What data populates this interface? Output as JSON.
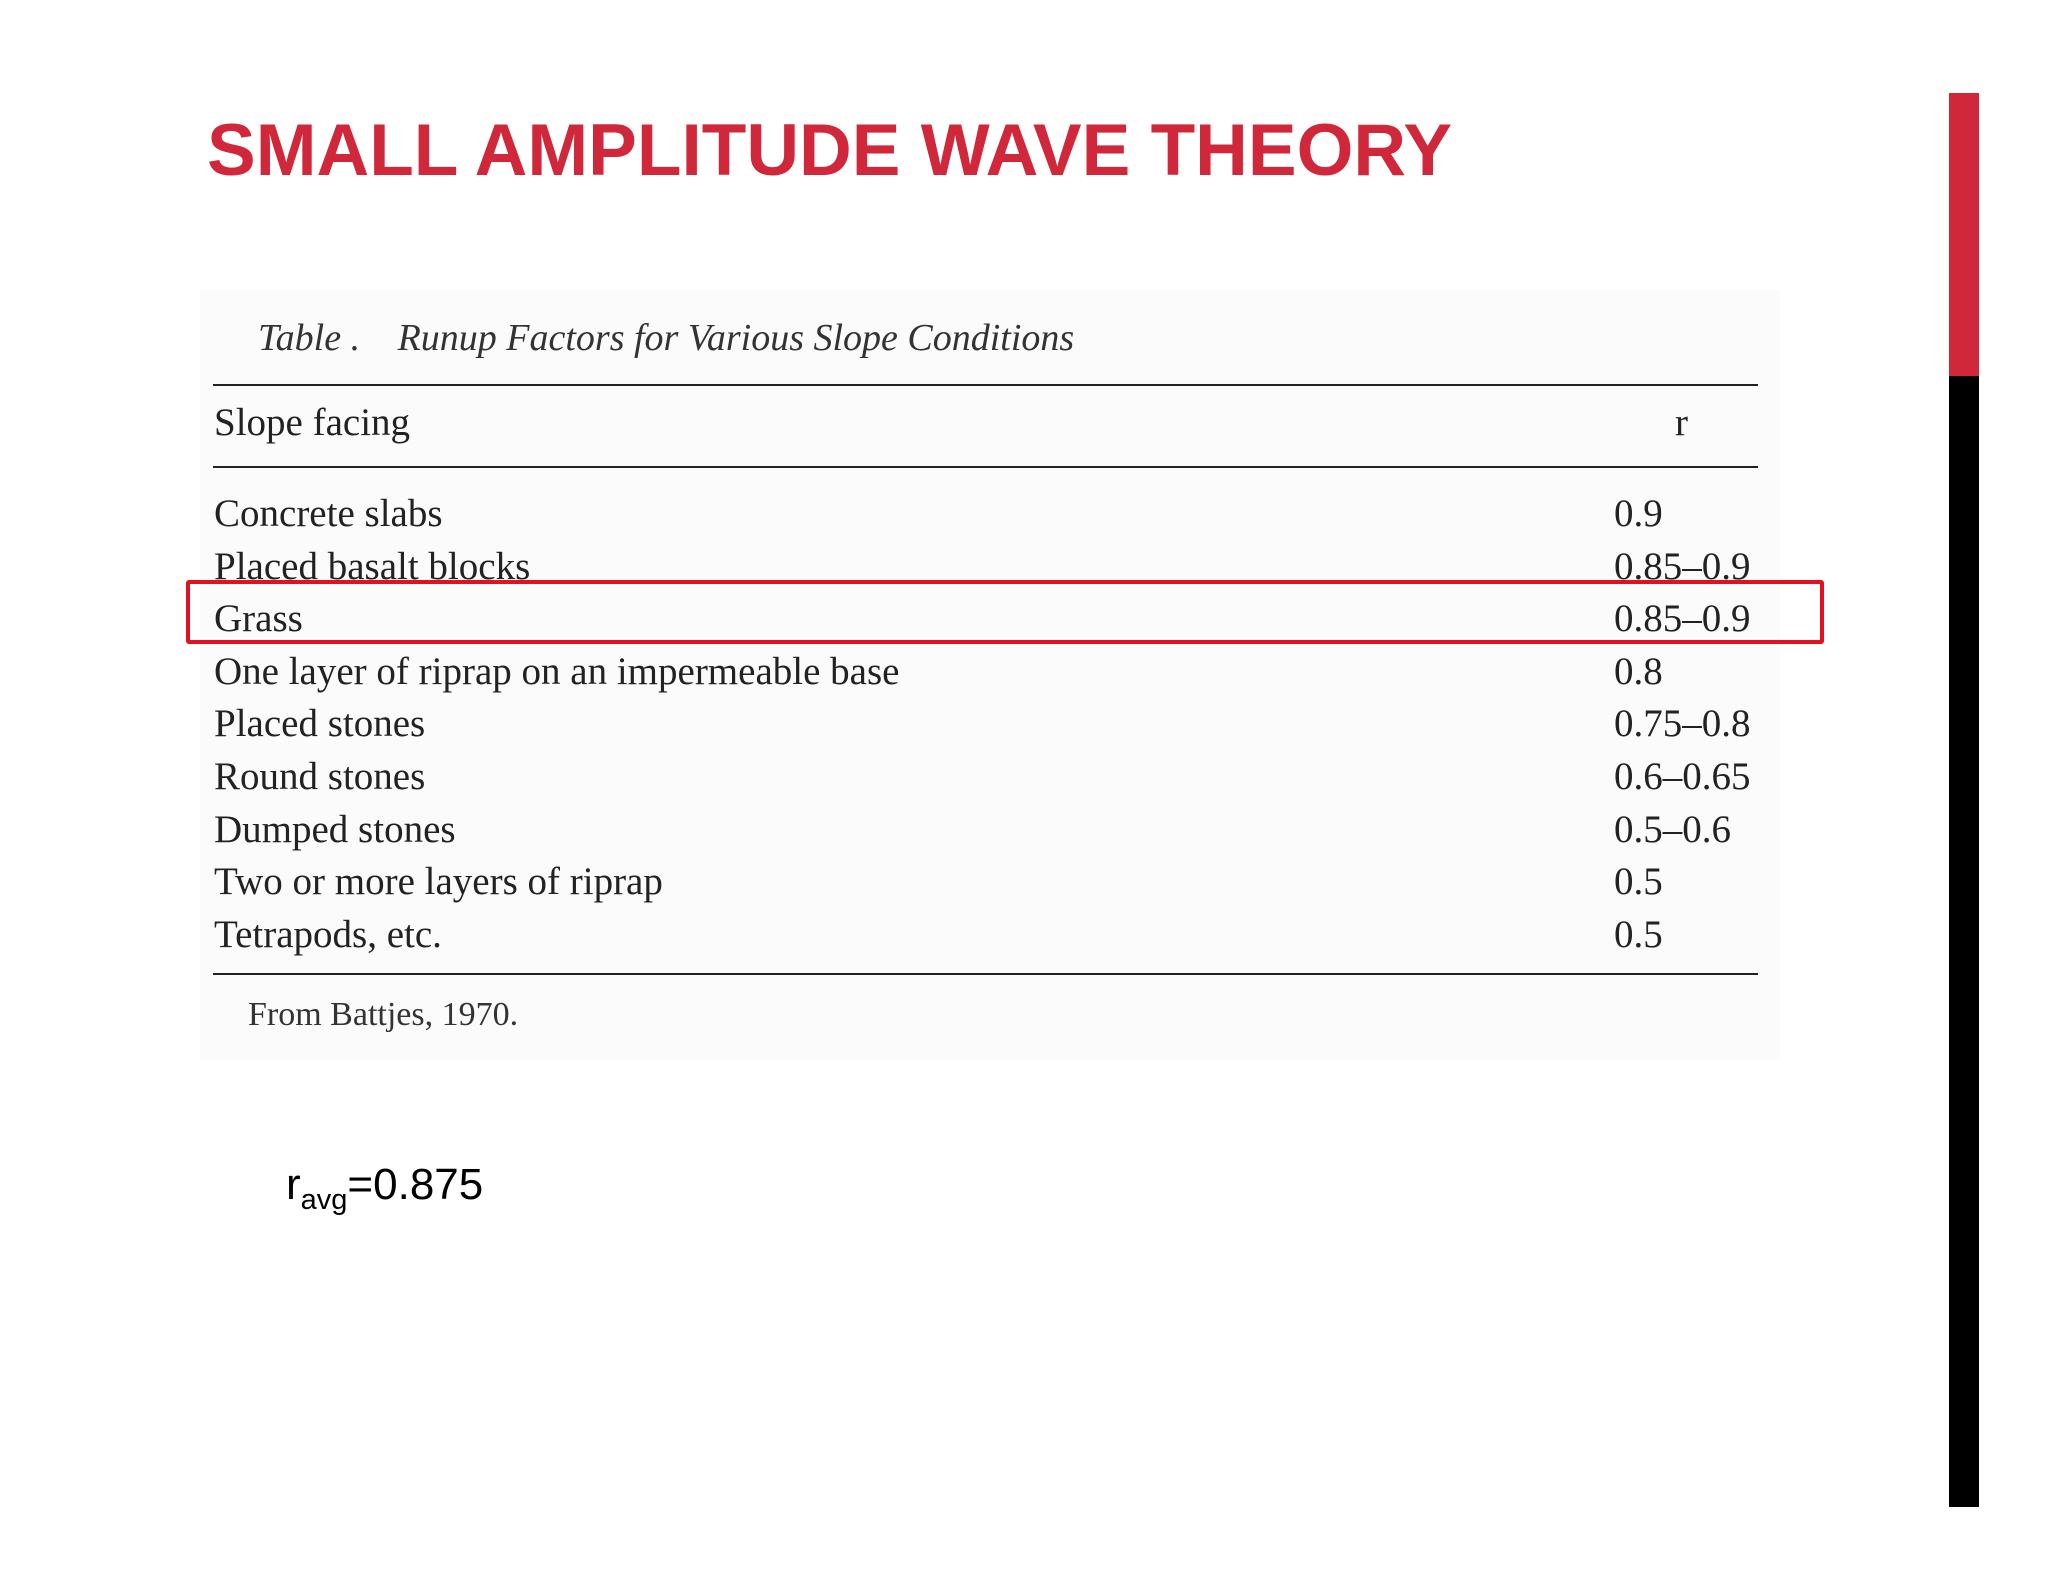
{
  "slide": {
    "title": "SMALL AMPLITUDE WAVE THEORY"
  },
  "table": {
    "caption_label": "Table .",
    "caption_title": "Runup Factors for Various Slope Conditions",
    "headers": {
      "slope": "Slope facing",
      "r": "r"
    },
    "rows": [
      {
        "label": "Concrete slabs",
        "value": "0.9"
      },
      {
        "label": "Placed basalt blocks",
        "value": "0.85–0.9"
      },
      {
        "label": "Grass",
        "value": "0.85–0.9"
      },
      {
        "label": "One layer of riprap on an impermeable base",
        "value": "0.8"
      },
      {
        "label": "Placed stones",
        "value": "0.75–0.8"
      },
      {
        "label": "Round stones",
        "value": "0.6–0.65"
      },
      {
        "label": "Dumped stones",
        "value": "0.5–0.6"
      },
      {
        "label": "Two or more layers of riprap",
        "value": "0.5"
      },
      {
        "label": "Tetrapods, etc.",
        "value": "0.5"
      }
    ],
    "source": "From Battjes, 1970.",
    "highlighted_row": "Grass"
  },
  "note": {
    "symbol": "r",
    "subscript": "avg",
    "value": "=0.875"
  },
  "colors": {
    "title": "#d0283a",
    "accent_red": "#d0283a",
    "accent_black": "#000000",
    "highlight_border": "#e3101e"
  }
}
